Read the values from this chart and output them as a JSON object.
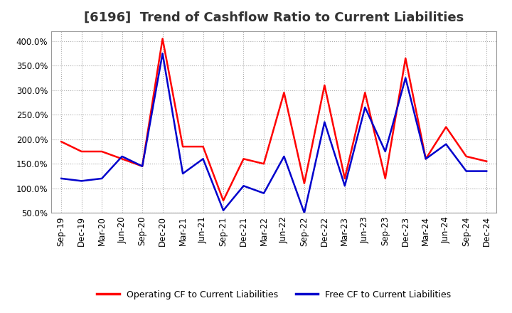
{
  "title": "[6196]  Trend of Cashflow Ratio to Current Liabilities",
  "x_labels": [
    "Sep-19",
    "Dec-19",
    "Mar-20",
    "Jun-20",
    "Sep-20",
    "Dec-20",
    "Mar-21",
    "Jun-21",
    "Sep-21",
    "Dec-21",
    "Mar-22",
    "Jun-22",
    "Sep-22",
    "Dec-22",
    "Mar-23",
    "Jun-23",
    "Sep-23",
    "Dec-23",
    "Mar-24",
    "Jun-24",
    "Sep-24",
    "Dec-24"
  ],
  "operating_cf": [
    195,
    175,
    175,
    160,
    145,
    405,
    185,
    185,
    75,
    160,
    150,
    295,
    110,
    310,
    120,
    295,
    120,
    365,
    160,
    225,
    165,
    155
  ],
  "free_cf": [
    120,
    115,
    120,
    165,
    145,
    375,
    130,
    160,
    55,
    105,
    90,
    165,
    50,
    235,
    105,
    265,
    175,
    325,
    160,
    190,
    135,
    135
  ],
  "operating_color": "#ff0000",
  "free_color": "#0000cc",
  "ylim_min": 50.0,
  "ylim_max": 420.0,
  "yticks": [
    50,
    100,
    150,
    200,
    250,
    300,
    350,
    400
  ],
  "legend_labels": [
    "Operating CF to Current Liabilities",
    "Free CF to Current Liabilities"
  ],
  "background_color": "#ffffff",
  "grid_color": "#aaaaaa",
  "line_width": 1.8,
  "title_fontsize": 13,
  "tick_fontsize": 8.5,
  "legend_fontsize": 9
}
